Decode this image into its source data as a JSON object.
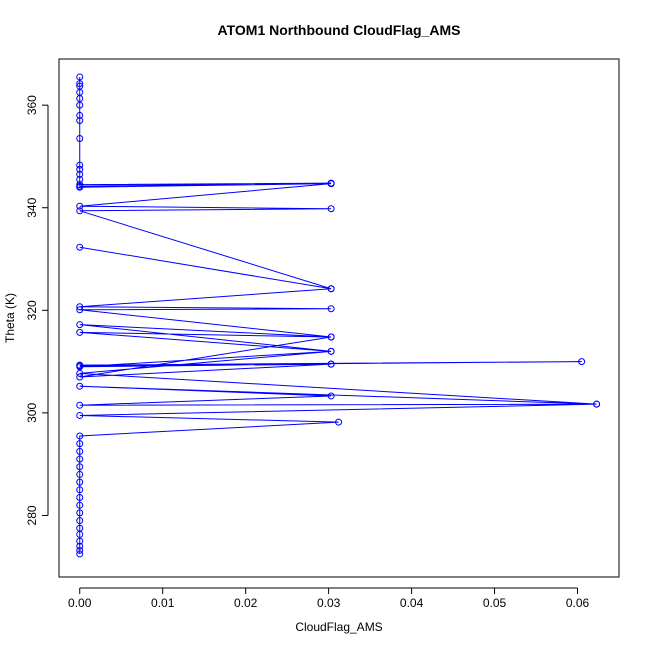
{
  "chart_data": {
    "type": "scatter",
    "title": "ATOM1 Northbound CloudFlag_AMS",
    "xlabel": "CloudFlag_AMS",
    "ylabel": "Theta (K)",
    "xlim": [
      -0.0025,
      0.065
    ],
    "ylim": [
      268,
      369
    ],
    "x_ticks": [
      0.0,
      0.01,
      0.02,
      0.03,
      0.04,
      0.05,
      0.06
    ],
    "x_tick_labels": [
      "0.00",
      "0.01",
      "0.02",
      "0.03",
      "0.04",
      "0.05",
      "0.06"
    ],
    "y_ticks": [
      280,
      300,
      320,
      340,
      360
    ],
    "y_tick_labels": [
      "280",
      "300",
      "320",
      "340",
      "360"
    ],
    "grid": false,
    "legend": "none",
    "color": "#0000ff",
    "series": [
      {
        "points": [
          {
            "x": 0.0,
            "y": 272.5
          },
          {
            "x": 0.0,
            "y": 273.2
          },
          {
            "x": 0.0,
            "y": 274.0
          },
          {
            "x": 0.0,
            "y": 275.0
          },
          {
            "x": 0.0,
            "y": 276.3
          },
          {
            "x": 0.0,
            "y": 277.5
          },
          {
            "x": 0.0,
            "y": 279.0
          },
          {
            "x": 0.0,
            "y": 280.5
          },
          {
            "x": 0.0,
            "y": 282.0
          },
          {
            "x": 0.0,
            "y": 283.5
          },
          {
            "x": 0.0,
            "y": 285.0
          },
          {
            "x": 0.0,
            "y": 286.5
          },
          {
            "x": 0.0,
            "y": 288.0
          },
          {
            "x": 0.0,
            "y": 289.5
          },
          {
            "x": 0.0,
            "y": 291.0
          },
          {
            "x": 0.0,
            "y": 292.5
          },
          {
            "x": 0.0,
            "y": 294.0
          },
          {
            "x": 0.0,
            "y": 295.5
          },
          {
            "x": 0.0312,
            "y": 298.2
          },
          {
            "x": 0.0,
            "y": 299.5
          },
          {
            "x": 0.0623,
            "y": 301.7
          },
          {
            "x": 0.0,
            "y": 301.5
          },
          {
            "x": 0.0303,
            "y": 303.3
          },
          {
            "x": 0.0,
            "y": 305.2
          },
          {
            "x": 0.0623,
            "y": 301.7
          },
          {
            "x": 0.0,
            "y": 307.7
          },
          {
            "x": 0.0303,
            "y": 312.0
          },
          {
            "x": 0.0,
            "y": 309.0
          },
          {
            "x": 0.0303,
            "y": 309.5
          },
          {
            "x": 0.0,
            "y": 309.2
          },
          {
            "x": 0.0605,
            "y": 310.0
          },
          {
            "x": 0.0,
            "y": 309.3
          },
          {
            "x": 0.0303,
            "y": 309.5
          },
          {
            "x": 0.0,
            "y": 307.0
          },
          {
            "x": 0.0303,
            "y": 314.8
          },
          {
            "x": 0.0,
            "y": 315.7
          },
          {
            "x": 0.0303,
            "y": 312.0
          },
          {
            "x": 0.0,
            "y": 317.2
          },
          {
            "x": 0.0303,
            "y": 314.8
          },
          {
            "x": 0.0,
            "y": 320.1
          },
          {
            "x": 0.0303,
            "y": 320.3
          },
          {
            "x": 0.0,
            "y": 320.7
          },
          {
            "x": 0.0303,
            "y": 324.2
          },
          {
            "x": 0.0,
            "y": 332.3
          },
          {
            "x": 0.0303,
            "y": 324.2
          },
          {
            "x": 0.0,
            "y": 339.4
          },
          {
            "x": 0.0303,
            "y": 339.8
          },
          {
            "x": 0.0,
            "y": 340.3
          },
          {
            "x": 0.0303,
            "y": 344.7
          },
          {
            "x": 0.0,
            "y": 344.0
          },
          {
            "x": 0.0303,
            "y": 344.8
          },
          {
            "x": 0.0,
            "y": 344.5
          },
          {
            "x": 0.0303,
            "y": 344.7
          },
          {
            "x": 0.0,
            "y": 344.2
          },
          {
            "x": 0.0,
            "y": 345.5
          },
          {
            "x": 0.0,
            "y": 346.5
          },
          {
            "x": 0.0,
            "y": 347.5
          },
          {
            "x": 0.0,
            "y": 348.3
          },
          {
            "x": 0.0,
            "y": 353.5
          },
          {
            "x": 0.0,
            "y": 357.0
          },
          {
            "x": 0.0,
            "y": 358.0
          },
          {
            "x": 0.0,
            "y": 360.0
          },
          {
            "x": 0.0,
            "y": 361.3
          },
          {
            "x": 0.0,
            "y": 362.5
          },
          {
            "x": 0.0,
            "y": 363.7
          },
          {
            "x": 0.0,
            "y": 364.2
          },
          {
            "x": 0.0,
            "y": 365.5
          }
        ]
      }
    ]
  }
}
